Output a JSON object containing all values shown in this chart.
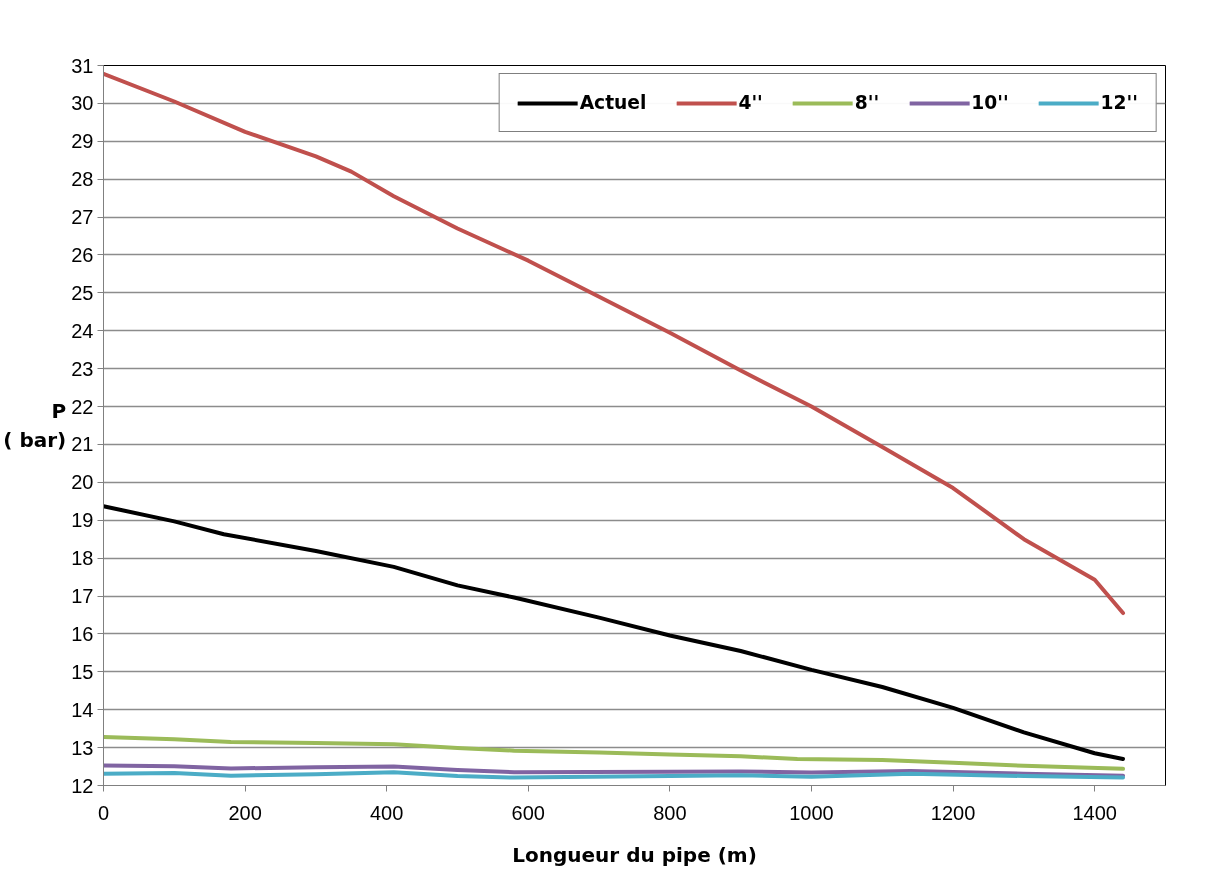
{
  "chart_data": {
    "type": "line",
    "xlabel": "Longueur du pipe (m)",
    "ylabel": "P\n( bar)",
    "xlim": [
      0,
      1500
    ],
    "xticks": [
      0,
      200,
      400,
      600,
      800,
      1000,
      1200,
      1400
    ],
    "ylim": [
      12,
      31
    ],
    "yticks": [
      12,
      13,
      14,
      15,
      16,
      17,
      18,
      19,
      20,
      21,
      22,
      23,
      24,
      25,
      26,
      27,
      28,
      29,
      30,
      31
    ],
    "grid": "y",
    "legend": "top right",
    "marker": "none",
    "line_style": "solid",
    "series": [
      {
        "name": "Actuel",
        "color": "#000000",
        "x": [
          0,
          100,
          170,
          300,
          410,
          500,
          580,
          700,
          800,
          900,
          1000,
          1100,
          1200,
          1300,
          1400,
          1440
        ],
        "values": [
          19.37,
          18.97,
          18.63,
          18.19,
          17.77,
          17.28,
          16.96,
          16.43,
          15.96,
          15.55,
          15.05,
          14.6,
          14.05,
          13.4,
          12.85,
          12.7
        ]
      },
      {
        "name": "4''",
        "color": "#c0504d",
        "x": [
          0,
          100,
          200,
          300,
          350,
          410,
          500,
          600,
          700,
          800,
          900,
          1000,
          1100,
          1200,
          1300,
          1400,
          1440
        ],
        "values": [
          30.78,
          30.05,
          29.25,
          28.6,
          28.2,
          27.55,
          26.7,
          25.85,
          24.9,
          23.95,
          22.95,
          22.0,
          20.93,
          19.85,
          18.5,
          17.43,
          16.55
        ]
      },
      {
        "name": "8''",
        "color": "#9bbb59",
        "x": [
          0,
          100,
          180,
          300,
          410,
          500,
          580,
          700,
          800,
          900,
          980,
          1100,
          1200,
          1300,
          1440
        ],
        "values": [
          13.28,
          13.22,
          13.15,
          13.12,
          13.09,
          12.99,
          12.92,
          12.87,
          12.82,
          12.77,
          12.7,
          12.67,
          12.6,
          12.52,
          12.44
        ]
      },
      {
        "name": "10''",
        "color": "#8064a2",
        "x": [
          0,
          100,
          180,
          300,
          410,
          500,
          580,
          800,
          900,
          1000,
          1140,
          1300,
          1440
        ],
        "values": [
          12.53,
          12.51,
          12.45,
          12.48,
          12.5,
          12.41,
          12.35,
          12.36,
          12.37,
          12.34,
          12.38,
          12.31,
          12.26
        ]
      },
      {
        "name": "12''",
        "color": "#4bacc6",
        "x": [
          0,
          100,
          180,
          300,
          410,
          500,
          580,
          800,
          900,
          1000,
          1140,
          1300,
          1440
        ],
        "values": [
          12.31,
          12.33,
          12.26,
          12.3,
          12.35,
          12.25,
          12.21,
          12.25,
          12.27,
          12.23,
          12.31,
          12.25,
          12.21
        ]
      }
    ]
  }
}
